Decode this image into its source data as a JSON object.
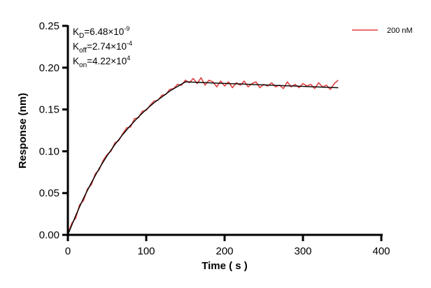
{
  "chart_data": {
    "type": "line",
    "title": "",
    "xlabel": "Time ( s )",
    "ylabel": "Response (nm)",
    "xlim": [
      0,
      400
    ],
    "ylim": [
      0,
      0.25
    ],
    "x_ticks": [
      "0",
      "100",
      "200",
      "300",
      "400"
    ],
    "y_ticks": [
      "0.00",
      "0.05",
      "0.10",
      "0.15",
      "0.20",
      "0.25"
    ],
    "grid": false,
    "legend_position": "top-right",
    "annotations": {
      "kd": {
        "base": "K",
        "sub": "D",
        "value": "=6.48×10",
        "exp": "-9"
      },
      "koff": {
        "base": "K",
        "sub": "off",
        "value": "=2.74×10",
        "exp": "-4"
      },
      "kon": {
        "base": "K",
        "sub": "on",
        "value": "=4.22×10",
        "exp": "4"
      }
    },
    "series": [
      {
        "name": "200 nM",
        "color": "#e04040",
        "x": [
          0,
          5,
          10,
          15,
          20,
          25,
          30,
          35,
          40,
          45,
          50,
          55,
          60,
          65,
          70,
          75,
          80,
          85,
          90,
          95,
          100,
          105,
          110,
          115,
          120,
          125,
          130,
          135,
          140,
          145,
          150,
          155,
          160,
          165,
          170,
          175,
          180,
          185,
          190,
          195,
          200,
          205,
          210,
          215,
          220,
          225,
          230,
          235,
          240,
          245,
          250,
          255,
          260,
          265,
          270,
          275,
          280,
          285,
          290,
          295,
          300,
          305,
          310,
          315,
          320,
          325,
          330,
          335,
          340,
          345
        ],
        "y": [
          0.001,
          0.014,
          0.02,
          0.036,
          0.041,
          0.055,
          0.06,
          0.073,
          0.078,
          0.089,
          0.096,
          0.1,
          0.11,
          0.113,
          0.121,
          0.128,
          0.129,
          0.139,
          0.14,
          0.148,
          0.149,
          0.155,
          0.16,
          0.161,
          0.167,
          0.168,
          0.174,
          0.175,
          0.18,
          0.179,
          0.185,
          0.182,
          0.187,
          0.181,
          0.188,
          0.179,
          0.185,
          0.183,
          0.177,
          0.184,
          0.178,
          0.183,
          0.176,
          0.182,
          0.179,
          0.184,
          0.177,
          0.181,
          0.183,
          0.176,
          0.18,
          0.178,
          0.182,
          0.177,
          0.179,
          0.175,
          0.183,
          0.177,
          0.18,
          0.176,
          0.181,
          0.178,
          0.18,
          0.175,
          0.182,
          0.177,
          0.179,
          0.174,
          0.181,
          0.185
        ]
      },
      {
        "color": "#000000",
        "role": "fit",
        "x": [
          0,
          10,
          20,
          30,
          40,
          50,
          60,
          70,
          80,
          90,
          100,
          110,
          120,
          130,
          140,
          150,
          160,
          170,
          180,
          190,
          200,
          210,
          220,
          230,
          240,
          250,
          260,
          270,
          280,
          290,
          300,
          310,
          320,
          330,
          340,
          345
        ],
        "y": [
          0,
          0.0231,
          0.044,
          0.0625,
          0.0795,
          0.0946,
          0.108,
          0.12,
          0.131,
          0.141,
          0.15,
          0.158,
          0.165,
          0.172,
          0.1775,
          0.183,
          0.1826,
          0.1823,
          0.1819,
          0.1815,
          0.1812,
          0.1808,
          0.1805,
          0.1801,
          0.1797,
          0.1794,
          0.179,
          0.1787,
          0.1783,
          0.178,
          0.1776,
          0.1772,
          0.1769,
          0.1765,
          0.1762,
          0.176
        ]
      }
    ]
  }
}
